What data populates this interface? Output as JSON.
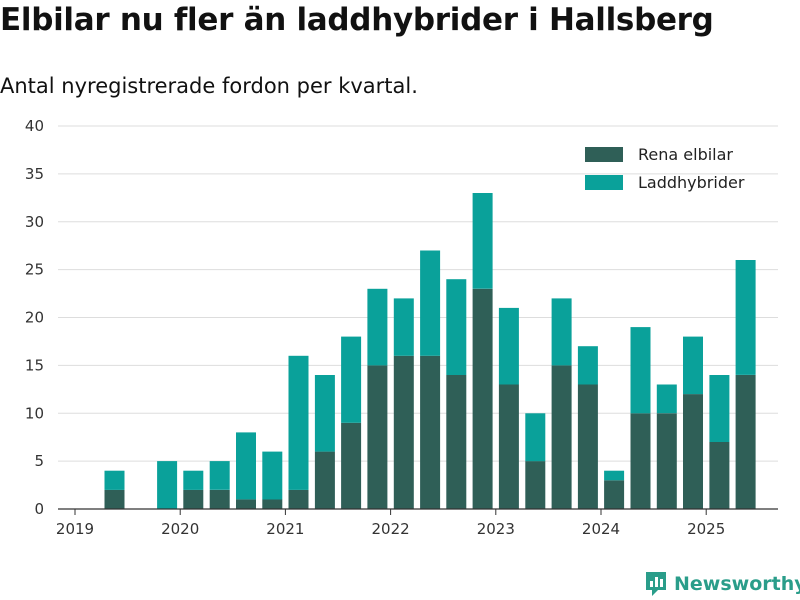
{
  "chart_data": {
    "type": "bar",
    "stacked": true,
    "title": "Elbilar nu fler än laddhybrider i Hallsberg",
    "subtitle": "Antal nyregistrerade fordon per kvartal.",
    "x_ticks": [
      "2019",
      "2020",
      "2021",
      "2022",
      "2023",
      "2024",
      "2025"
    ],
    "y_ticks": [
      "0",
      "5",
      "10",
      "15",
      "20",
      "25",
      "30",
      "35",
      "40"
    ],
    "ylim": [
      0,
      40
    ],
    "grid": true,
    "legend_position": "top-right",
    "categories": [
      "2019 Q1",
      "2019 Q2",
      "2019 Q3",
      "2019 Q4",
      "2020 Q1",
      "2020 Q2",
      "2020 Q3",
      "2020 Q4",
      "2021 Q1",
      "2021 Q2",
      "2021 Q3",
      "2021 Q4",
      "2022 Q1",
      "2022 Q2",
      "2022 Q3",
      "2022 Q4",
      "2023 Q1",
      "2023 Q2",
      "2023 Q3",
      "2023 Q4",
      "2024 Q1",
      "2024 Q2",
      "2024 Q3",
      "2024 Q4",
      "2025 Q1",
      "2025 Q2"
    ],
    "series": [
      {
        "name": "Rena elbilar",
        "color": "#2f5f57",
        "values": [
          0,
          2,
          0,
          0,
          2,
          2,
          1,
          1,
          2,
          6,
          9,
          15,
          16,
          16,
          14,
          23,
          13,
          5,
          15,
          13,
          3,
          10,
          10,
          12,
          7,
          14
        ]
      },
      {
        "name": "Laddhybrider",
        "color": "#0aa19a",
        "values": [
          0,
          2,
          0,
          5,
          2,
          3,
          7,
          5,
          14,
          8,
          9,
          8,
          6,
          11,
          10,
          10,
          8,
          5,
          7,
          4,
          1,
          9,
          3,
          6,
          7,
          12
        ]
      }
    ]
  },
  "brand": {
    "name": "Newsworthy",
    "icon": "newsworthy-logo-icon",
    "color": "#2a9d8a"
  }
}
